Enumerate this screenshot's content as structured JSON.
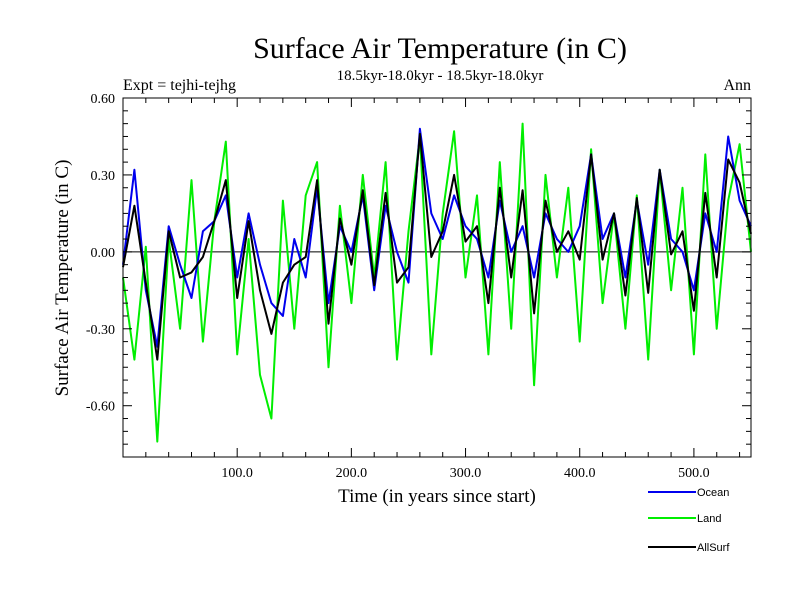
{
  "chart_data": {
    "type": "line",
    "title": "Surface Air Temperature (in C)",
    "subtitle": "18.5kyr-18.0kyr - 18.5kyr-18.0kyr",
    "left_label": "Expt = tejhi-tejhg",
    "right_label": "Ann",
    "xlabel": "Time (in years since start)",
    "ylabel": "Surface Air Temperature (in C)",
    "xlim": [
      0,
      550
    ],
    "ylim": [
      -0.8,
      0.6
    ],
    "x_ticks": [
      100,
      200,
      300,
      400,
      500
    ],
    "x_tick_labels": [
      "100.0",
      "200.0",
      "300.0",
      "400.0",
      "500.0"
    ],
    "y_ticks": [
      0.6,
      0.3,
      0.0,
      -0.3,
      -0.6
    ],
    "y_tick_labels": [
      "0.60",
      "0.30",
      "0.00",
      "-0.30",
      "-0.60"
    ],
    "zero_line": true,
    "legend_position": "bottom-right",
    "series": [
      {
        "name": "Land",
        "color": "#00ee00",
        "x": [
          0,
          10,
          20,
          30,
          40,
          50,
          60,
          70,
          80,
          90,
          100,
          110,
          120,
          130,
          140,
          150,
          160,
          170,
          180,
          190,
          200,
          210,
          220,
          230,
          240,
          250,
          260,
          270,
          280,
          290,
          300,
          310,
          320,
          330,
          340,
          350,
          360,
          370,
          380,
          390,
          400,
          410,
          420,
          430,
          440,
          450,
          460,
          470,
          480,
          490,
          500,
          510,
          520,
          530,
          540,
          550
        ],
        "values": [
          -0.1,
          -0.42,
          0.02,
          -0.74,
          0.05,
          -0.3,
          0.28,
          -0.35,
          0.12,
          0.43,
          -0.4,
          0.05,
          -0.48,
          -0.65,
          0.2,
          -0.3,
          0.22,
          0.35,
          -0.45,
          0.18,
          -0.2,
          0.3,
          -0.1,
          0.35,
          -0.42,
          0.08,
          0.45,
          -0.4,
          0.15,
          0.47,
          -0.1,
          0.22,
          -0.4,
          0.35,
          -0.3,
          0.5,
          -0.52,
          0.3,
          -0.1,
          0.25,
          -0.35,
          0.4,
          -0.2,
          0.15,
          -0.3,
          0.22,
          -0.42,
          0.32,
          -0.15,
          0.25,
          -0.4,
          0.38,
          -0.3,
          0.2,
          0.42,
          0.0
        ]
      },
      {
        "name": "Ocean",
        "color": "#0000ee",
        "x": [
          0,
          10,
          20,
          30,
          40,
          50,
          60,
          70,
          80,
          90,
          100,
          110,
          120,
          130,
          140,
          150,
          160,
          170,
          180,
          190,
          200,
          210,
          220,
          230,
          240,
          250,
          260,
          270,
          280,
          290,
          300,
          310,
          320,
          330,
          340,
          350,
          360,
          370,
          380,
          390,
          400,
          410,
          420,
          430,
          440,
          450,
          460,
          470,
          480,
          490,
          500,
          510,
          520,
          530,
          540,
          550
        ],
        "values": [
          -0.05,
          0.32,
          -0.15,
          -0.37,
          0.1,
          -0.05,
          -0.18,
          0.08,
          0.12,
          0.22,
          -0.1,
          0.15,
          -0.05,
          -0.2,
          -0.25,
          0.05,
          -0.1,
          0.25,
          -0.2,
          0.1,
          0.0,
          0.22,
          -0.15,
          0.18,
          0.0,
          -0.12,
          0.48,
          0.15,
          0.05,
          0.22,
          0.1,
          0.05,
          -0.1,
          0.2,
          0.0,
          0.1,
          -0.1,
          0.15,
          0.05,
          0.0,
          0.1,
          0.38,
          0.05,
          0.15,
          -0.1,
          0.2,
          -0.05,
          0.32,
          0.05,
          0.0,
          -0.15,
          0.15,
          0.0,
          0.45,
          0.2,
          0.1
        ]
      },
      {
        "name": "AllSurf",
        "color": "#000000",
        "x": [
          0,
          10,
          20,
          30,
          40,
          50,
          60,
          70,
          80,
          90,
          100,
          110,
          120,
          130,
          140,
          150,
          160,
          170,
          180,
          190,
          200,
          210,
          220,
          230,
          240,
          250,
          260,
          270,
          280,
          290,
          300,
          310,
          320,
          330,
          340,
          350,
          360,
          370,
          380,
          390,
          400,
          410,
          420,
          430,
          440,
          450,
          460,
          470,
          480,
          490,
          500,
          510,
          520,
          530,
          540,
          550
        ],
        "values": [
          -0.06,
          0.18,
          -0.12,
          -0.42,
          0.08,
          -0.1,
          -0.08,
          -0.02,
          0.12,
          0.28,
          -0.18,
          0.12,
          -0.15,
          -0.32,
          -0.12,
          -0.05,
          -0.02,
          0.28,
          -0.28,
          0.13,
          -0.05,
          0.24,
          -0.13,
          0.23,
          -0.12,
          -0.06,
          0.46,
          -0.02,
          0.08,
          0.3,
          0.04,
          0.1,
          -0.2,
          0.25,
          -0.1,
          0.24,
          -0.24,
          0.2,
          0.0,
          0.08,
          -0.03,
          0.38,
          -0.03,
          0.15,
          -0.17,
          0.21,
          -0.16,
          0.32,
          -0.01,
          0.08,
          -0.23,
          0.23,
          -0.1,
          0.36,
          0.27,
          0.07
        ]
      }
    ],
    "legend": [
      {
        "name": "Ocean",
        "color": "#0000ee"
      },
      {
        "name": "Land",
        "color": "#00ee00"
      },
      {
        "name": "AllSurf",
        "color": "#000000"
      }
    ]
  }
}
